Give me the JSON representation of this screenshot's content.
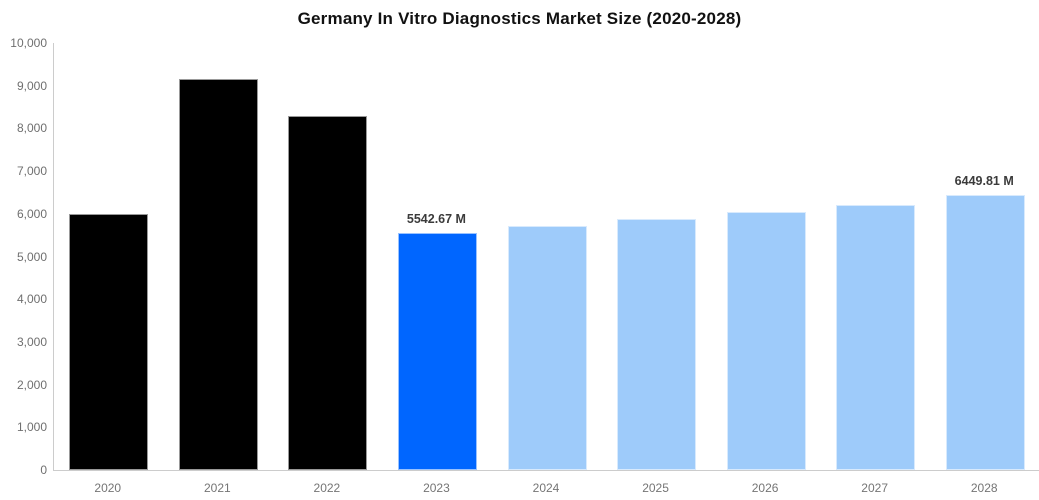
{
  "chart_data": {
    "type": "bar",
    "title": "Germany In Vitro Diagnostics Market Size (2020-2028)",
    "categories": [
      "2020",
      "2021",
      "2022",
      "2023",
      "2024",
      "2025",
      "2026",
      "2027",
      "2028"
    ],
    "values": [
      5990,
      9150,
      8280,
      5542.67,
      5714,
      5875,
      6040,
      6210,
      6449.81
    ],
    "bar_labels": [
      "",
      "",
      "",
      "5542.67 M",
      "",
      "",
      "",
      "",
      "6449.81 M"
    ],
    "bar_colors": [
      "#000000",
      "#000000",
      "#000000",
      "#0066ff",
      "#9ecbfa",
      "#9ecbfa",
      "#9ecbfa",
      "#9ecbfa",
      "#9ecbfa"
    ],
    "ylim": [
      0,
      10000
    ],
    "y_tick_values": [
      0,
      1000,
      2000,
      3000,
      4000,
      5000,
      6000,
      7000,
      8000,
      9000,
      10000
    ],
    "y_tick_labels": [
      "0",
      "1,000",
      "2,000",
      "3,000",
      "4,000",
      "5,000",
      "6,000",
      "7,000",
      "8,000",
      "9,000",
      "10,000"
    ],
    "xlabel": "",
    "ylabel": "",
    "grid": false,
    "legend": "none",
    "colors": {
      "highlight_bar": "#0066ff",
      "forecast_bar": "#9ecbfa",
      "historical_bar": "#000000",
      "axis_line": "#cccccc",
      "tick_label": "#6f6f6f",
      "data_label": "#3b3b3b",
      "title": "#111111",
      "background": "#ffffff"
    }
  }
}
